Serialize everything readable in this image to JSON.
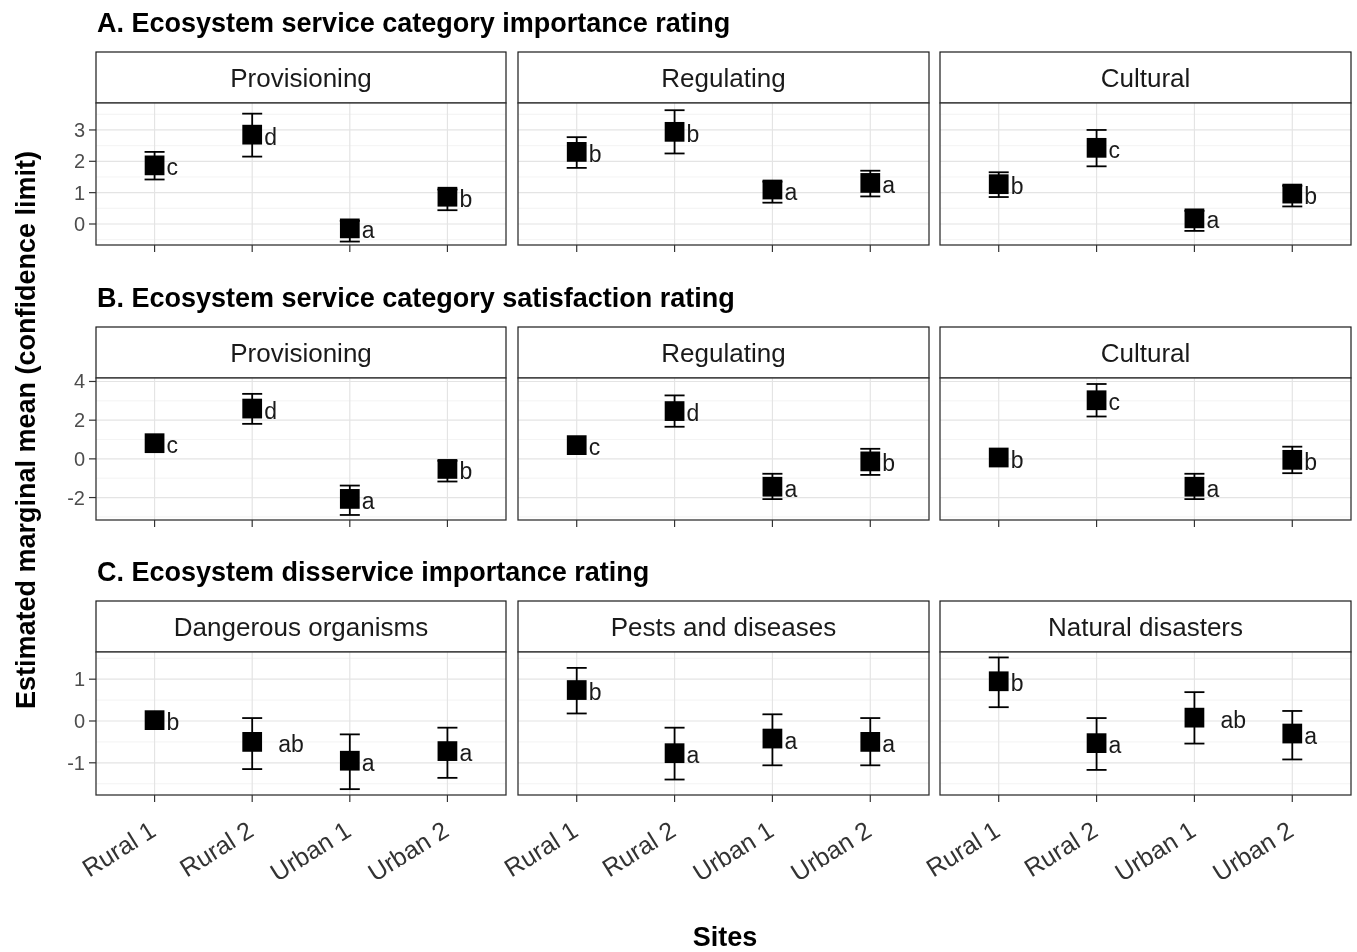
{
  "chart_data": [
    {
      "type": "scatter",
      "subtitle": "A. Ecosystem service category importance rating",
      "title": "Provisioning",
      "categories": [
        "Rural 1",
        "Rural 2",
        "Urban 1",
        "Urban 2"
      ],
      "values": [
        1.87,
        2.85,
        -0.14,
        0.87
      ],
      "errors": [
        [
          1.42,
          2.3
        ],
        [
          2.15,
          3.52
        ],
        [
          -0.56,
          0.1
        ],
        [
          0.44,
          1.1
        ]
      ],
      "color": "#000000",
      "marker": "square",
      "ylim": [
        -0.67,
        3.86
      ],
      "yticks": [
        0,
        1,
        2,
        3
      ],
      "grid": true,
      "tick_labels": "y",
      "annotations": [
        {
          "text": "c",
          "x": "Rural 1",
          "y": 1.87
        },
        {
          "text": "d",
          "x": "Rural 2",
          "y": 2.85
        },
        {
          "text": "a",
          "x": "Urban 1",
          "y": -0.14
        },
        {
          "text": "b",
          "x": "Urban 2",
          "y": 0.87
        }
      ]
    },
    {
      "type": "scatter",
      "title": "Regulating",
      "categories": [
        "Rural 1",
        "Rural 2",
        "Urban 1",
        "Urban 2"
      ],
      "values": [
        2.3,
        2.94,
        1.1,
        1.31
      ],
      "errors": [
        [
          1.79,
          2.77
        ],
        [
          2.25,
          3.63
        ],
        [
          0.68,
          1.35
        ],
        [
          0.88,
          1.7
        ]
      ],
      "color": "#000000",
      "marker": "square",
      "ylim": [
        -0.67,
        3.86
      ],
      "yticks": [
        0,
        1,
        2,
        3
      ],
      "grid": true,
      "tick_labels": false,
      "annotations": [
        {
          "text": "b",
          "x": "Rural 1",
          "y": 2.3
        },
        {
          "text": "b",
          "x": "Rural 2",
          "y": 2.94
        },
        {
          "text": "a",
          "x": "Urban 1",
          "y": 1.1
        },
        {
          "text": "a",
          "x": "Urban 2",
          "y": 1.31
        }
      ]
    },
    {
      "type": "scatter",
      "title": "Cultural",
      "categories": [
        "Rural 1",
        "Rural 2",
        "Urban 1",
        "Urban 2"
      ],
      "values": [
        1.27,
        2.43,
        0.18,
        0.97
      ],
      "errors": [
        [
          0.86,
          1.65
        ],
        [
          1.84,
          3.0
        ],
        [
          -0.22,
          0.42
        ],
        [
          0.56,
          1.22
        ]
      ],
      "color": "#000000",
      "marker": "square",
      "ylim": [
        -0.67,
        3.86
      ],
      "yticks": [
        0,
        1,
        2,
        3
      ],
      "grid": true,
      "tick_labels": false,
      "annotations": [
        {
          "text": "b",
          "x": "Rural 1",
          "y": 1.27
        },
        {
          "text": "c",
          "x": "Rural 2",
          "y": 2.43
        },
        {
          "text": "a",
          "x": "Urban 1",
          "y": 0.18
        },
        {
          "text": "b",
          "x": "Urban 2",
          "y": 0.97
        }
      ]
    },
    {
      "type": "scatter",
      "subtitle": "B. Ecosystem service category satisfaction rating",
      "title": "Provisioning",
      "ylabel": "Estimated marginal mean (confidence limit)",
      "categories": [
        "Rural 1",
        "Rural 2",
        "Urban 1",
        "Urban 2"
      ],
      "values": [
        0.81,
        2.6,
        -2.07,
        -0.52
      ],
      "errors": [
        null,
        [
          1.81,
          3.36
        ],
        [
          -2.9,
          -1.38
        ],
        [
          -1.17,
          -0.1
        ]
      ],
      "color": "#000000",
      "marker": "square",
      "ylim": [
        -3.16,
        4.18
      ],
      "yticks": [
        -2,
        0,
        2,
        4
      ],
      "grid": true,
      "tick_labels": "y",
      "annotations": [
        {
          "text": "c",
          "x": "Rural 1",
          "y": 0.81
        },
        {
          "text": "d",
          "x": "Rural 2",
          "y": 2.6
        },
        {
          "text": "a",
          "x": "Urban 1",
          "y": -2.07
        },
        {
          "text": "b",
          "x": "Urban 2",
          "y": -0.52
        }
      ]
    },
    {
      "type": "scatter",
      "title": "Regulating",
      "categories": [
        "Rural 1",
        "Rural 2",
        "Urban 1",
        "Urban 2"
      ],
      "values": [
        0.71,
        2.47,
        -1.44,
        -0.13
      ],
      "errors": [
        null,
        [
          1.66,
          3.28
        ],
        [
          -2.08,
          -0.77
        ],
        [
          -0.83,
          0.52
        ]
      ],
      "color": "#000000",
      "marker": "square",
      "ylim": [
        -3.16,
        4.18
      ],
      "yticks": [
        -2,
        0,
        2,
        4
      ],
      "grid": true,
      "tick_labels": false,
      "annotations": [
        {
          "text": "c",
          "x": "Rural 1",
          "y": 0.71
        },
        {
          "text": "d",
          "x": "Rural 2",
          "y": 2.47
        },
        {
          "text": "a",
          "x": "Urban 1",
          "y": -1.44
        },
        {
          "text": "b",
          "x": "Urban 2",
          "y": -0.13
        }
      ]
    },
    {
      "type": "scatter",
      "title": "Cultural",
      "categories": [
        "Rural 1",
        "Rural 2",
        "Urban 1",
        "Urban 2"
      ],
      "values": [
        0.07,
        3.03,
        -1.44,
        -0.05
      ],
      "errors": [
        null,
        [
          2.19,
          3.87
        ],
        [
          -2.08,
          -0.77
        ],
        [
          -0.74,
          0.63
        ]
      ],
      "color": "#000000",
      "marker": "square",
      "ylim": [
        -3.16,
        4.18
      ],
      "yticks": [
        -2,
        0,
        2,
        4
      ],
      "grid": true,
      "tick_labels": false,
      "annotations": [
        {
          "text": "b",
          "x": "Rural 1",
          "y": 0.07
        },
        {
          "text": "c",
          "x": "Rural 2",
          "y": 3.03
        },
        {
          "text": "a",
          "x": "Urban 1",
          "y": -1.44
        },
        {
          "text": "b",
          "x": "Urban 2",
          "y": -0.05
        }
      ]
    },
    {
      "type": "scatter",
      "subtitle": "C. Ecosystem disservice importance rating",
      "title": "Dangerous organisms",
      "categories": [
        "Rural 1",
        "Rural 2",
        "Urban 1",
        "Urban 2"
      ],
      "values": [
        0.02,
        -0.5,
        -0.95,
        -0.72
      ],
      "errors": [
        null,
        [
          -1.15,
          0.07
        ],
        [
          -1.63,
          -0.32
        ],
        [
          -1.36,
          -0.16
        ]
      ],
      "color": "#000000",
      "marker": "square",
      "ylim": [
        -1.77,
        1.65
      ],
      "yticks": [
        -1,
        0,
        1
      ],
      "grid": true,
      "annotations": [
        {
          "text": "b",
          "x": "Rural 1",
          "y": 0.02
        },
        {
          "text": "ab",
          "x": "Rural 2",
          "y": -0.5
        },
        {
          "text": "a",
          "x": "Urban 1",
          "y": -0.95
        },
        {
          "text": "a",
          "x": "Urban 2",
          "y": -0.72
        }
      ]
    },
    {
      "type": "scatter",
      "title": "Pests and diseases",
      "xlabel": "Sites",
      "categories": [
        "Rural 1",
        "Rural 2",
        "Urban 1",
        "Urban 2"
      ],
      "values": [
        0.74,
        -0.77,
        -0.42,
        -0.5
      ],
      "errors": [
        [
          0.18,
          1.27
        ],
        [
          -1.4,
          -0.16
        ],
        [
          -1.06,
          0.16
        ],
        [
          -1.06,
          0.07
        ]
      ],
      "color": "#000000",
      "marker": "square",
      "ylim": [
        -1.77,
        1.65
      ],
      "yticks": [
        -1,
        0,
        1
      ],
      "grid": true,
      "tick_labels": "x",
      "annotations": [
        {
          "text": "b",
          "x": "Rural 1",
          "y": 0.74
        },
        {
          "text": "a",
          "x": "Rural 2",
          "y": -0.77
        },
        {
          "text": "a",
          "x": "Urban 1",
          "y": -0.42
        },
        {
          "text": "a",
          "x": "Urban 2",
          "y": -0.5
        }
      ]
    },
    {
      "type": "scatter",
      "title": "Natural disasters",
      "categories": [
        "Rural 1",
        "Rural 2",
        "Urban 1",
        "Urban 2"
      ],
      "values": [
        0.95,
        -0.53,
        0.08,
        -0.3
      ],
      "errors": [
        [
          0.33,
          1.52
        ],
        [
          -1.17,
          0.07
        ],
        [
          -0.54,
          0.69
        ],
        [
          -0.92,
          0.24
        ]
      ],
      "color": "#000000",
      "marker": "square",
      "ylim": [
        -1.77,
        1.65
      ],
      "yticks": [
        -1,
        0,
        1
      ],
      "grid": true,
      "tick_labels": "x",
      "annotations": [
        {
          "text": "b",
          "x": "Rural 1",
          "y": 0.95
        },
        {
          "text": "a",
          "x": "Rural 2",
          "y": -0.53
        },
        {
          "text": "ab",
          "x": "Urban 1",
          "y": 0.08
        },
        {
          "text": "a",
          "x": "Urban 2",
          "y": -0.3
        }
      ]
    }
  ]
}
